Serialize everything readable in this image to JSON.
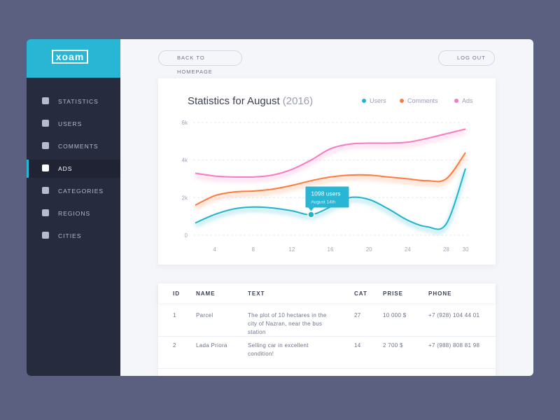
{
  "sidebar": {
    "logo": "xoam",
    "active": 3,
    "menu": [
      "STATISTICS",
      "USERS",
      "COMMENTS",
      "ADS",
      "CATEGORIES",
      "REGIONS",
      "CITIES"
    ]
  },
  "buttons": {
    "back": "BACK TO HOMEPAGE",
    "logout": "LOG OUT"
  },
  "chart_data": {
    "type": "line",
    "title": "Statistics for August",
    "title_year": "(2016)",
    "x": [
      2,
      4,
      6,
      8,
      10,
      12,
      14,
      16,
      18,
      20,
      22,
      24,
      26,
      28,
      30
    ],
    "xlim": [
      2,
      30
    ],
    "xticks": [
      4,
      8,
      12,
      16,
      20,
      24,
      28,
      30
    ],
    "ylim": [
      0,
      6000
    ],
    "yticks": [
      0,
      {
        "value": 2000,
        "label": "2k"
      },
      {
        "value": 4000,
        "label": "4k"
      },
      {
        "value": 6000,
        "label": "6k"
      }
    ],
    "grid": true,
    "series": [
      {
        "name": "Users",
        "color": "#1fb3cc",
        "values": [
          650,
          1100,
          1400,
          1500,
          1450,
          1300,
          1098,
          1500,
          2000,
          1900,
          1400,
          800,
          450,
          600,
          3550
        ]
      },
      {
        "name": "Comments",
        "color": "#ff7a3d",
        "values": [
          1600,
          2100,
          2300,
          2350,
          2450,
          2650,
          2900,
          3100,
          3200,
          3200,
          3100,
          3000,
          2900,
          3000,
          4400
        ]
      },
      {
        "name": "Ads",
        "color": "#f77bbd",
        "values": [
          3300,
          3150,
          3100,
          3100,
          3200,
          3500,
          4000,
          4600,
          4850,
          4900,
          4900,
          4950,
          5150,
          5400,
          5650
        ]
      }
    ],
    "annotation": {
      "series": 0,
      "index": 6,
      "text": "1098 users",
      "subtext": "August 14th"
    }
  },
  "table": {
    "header": [
      "ID",
      "NAME",
      "TEXT",
      "CAT",
      "PRISE",
      "PHONE"
    ],
    "rows": [
      [
        "1",
        "Parcel",
        "The plot of 10 hectares in the city of Nazran, near the bus station",
        "27",
        "10 000 $",
        "+7 (928) 104 44 01"
      ],
      [
        "2",
        "Lada Priora",
        "Selling car in excellent condition!",
        "14",
        "2 700 $",
        "+7 (988) 808 81 98"
      ]
    ]
  }
}
